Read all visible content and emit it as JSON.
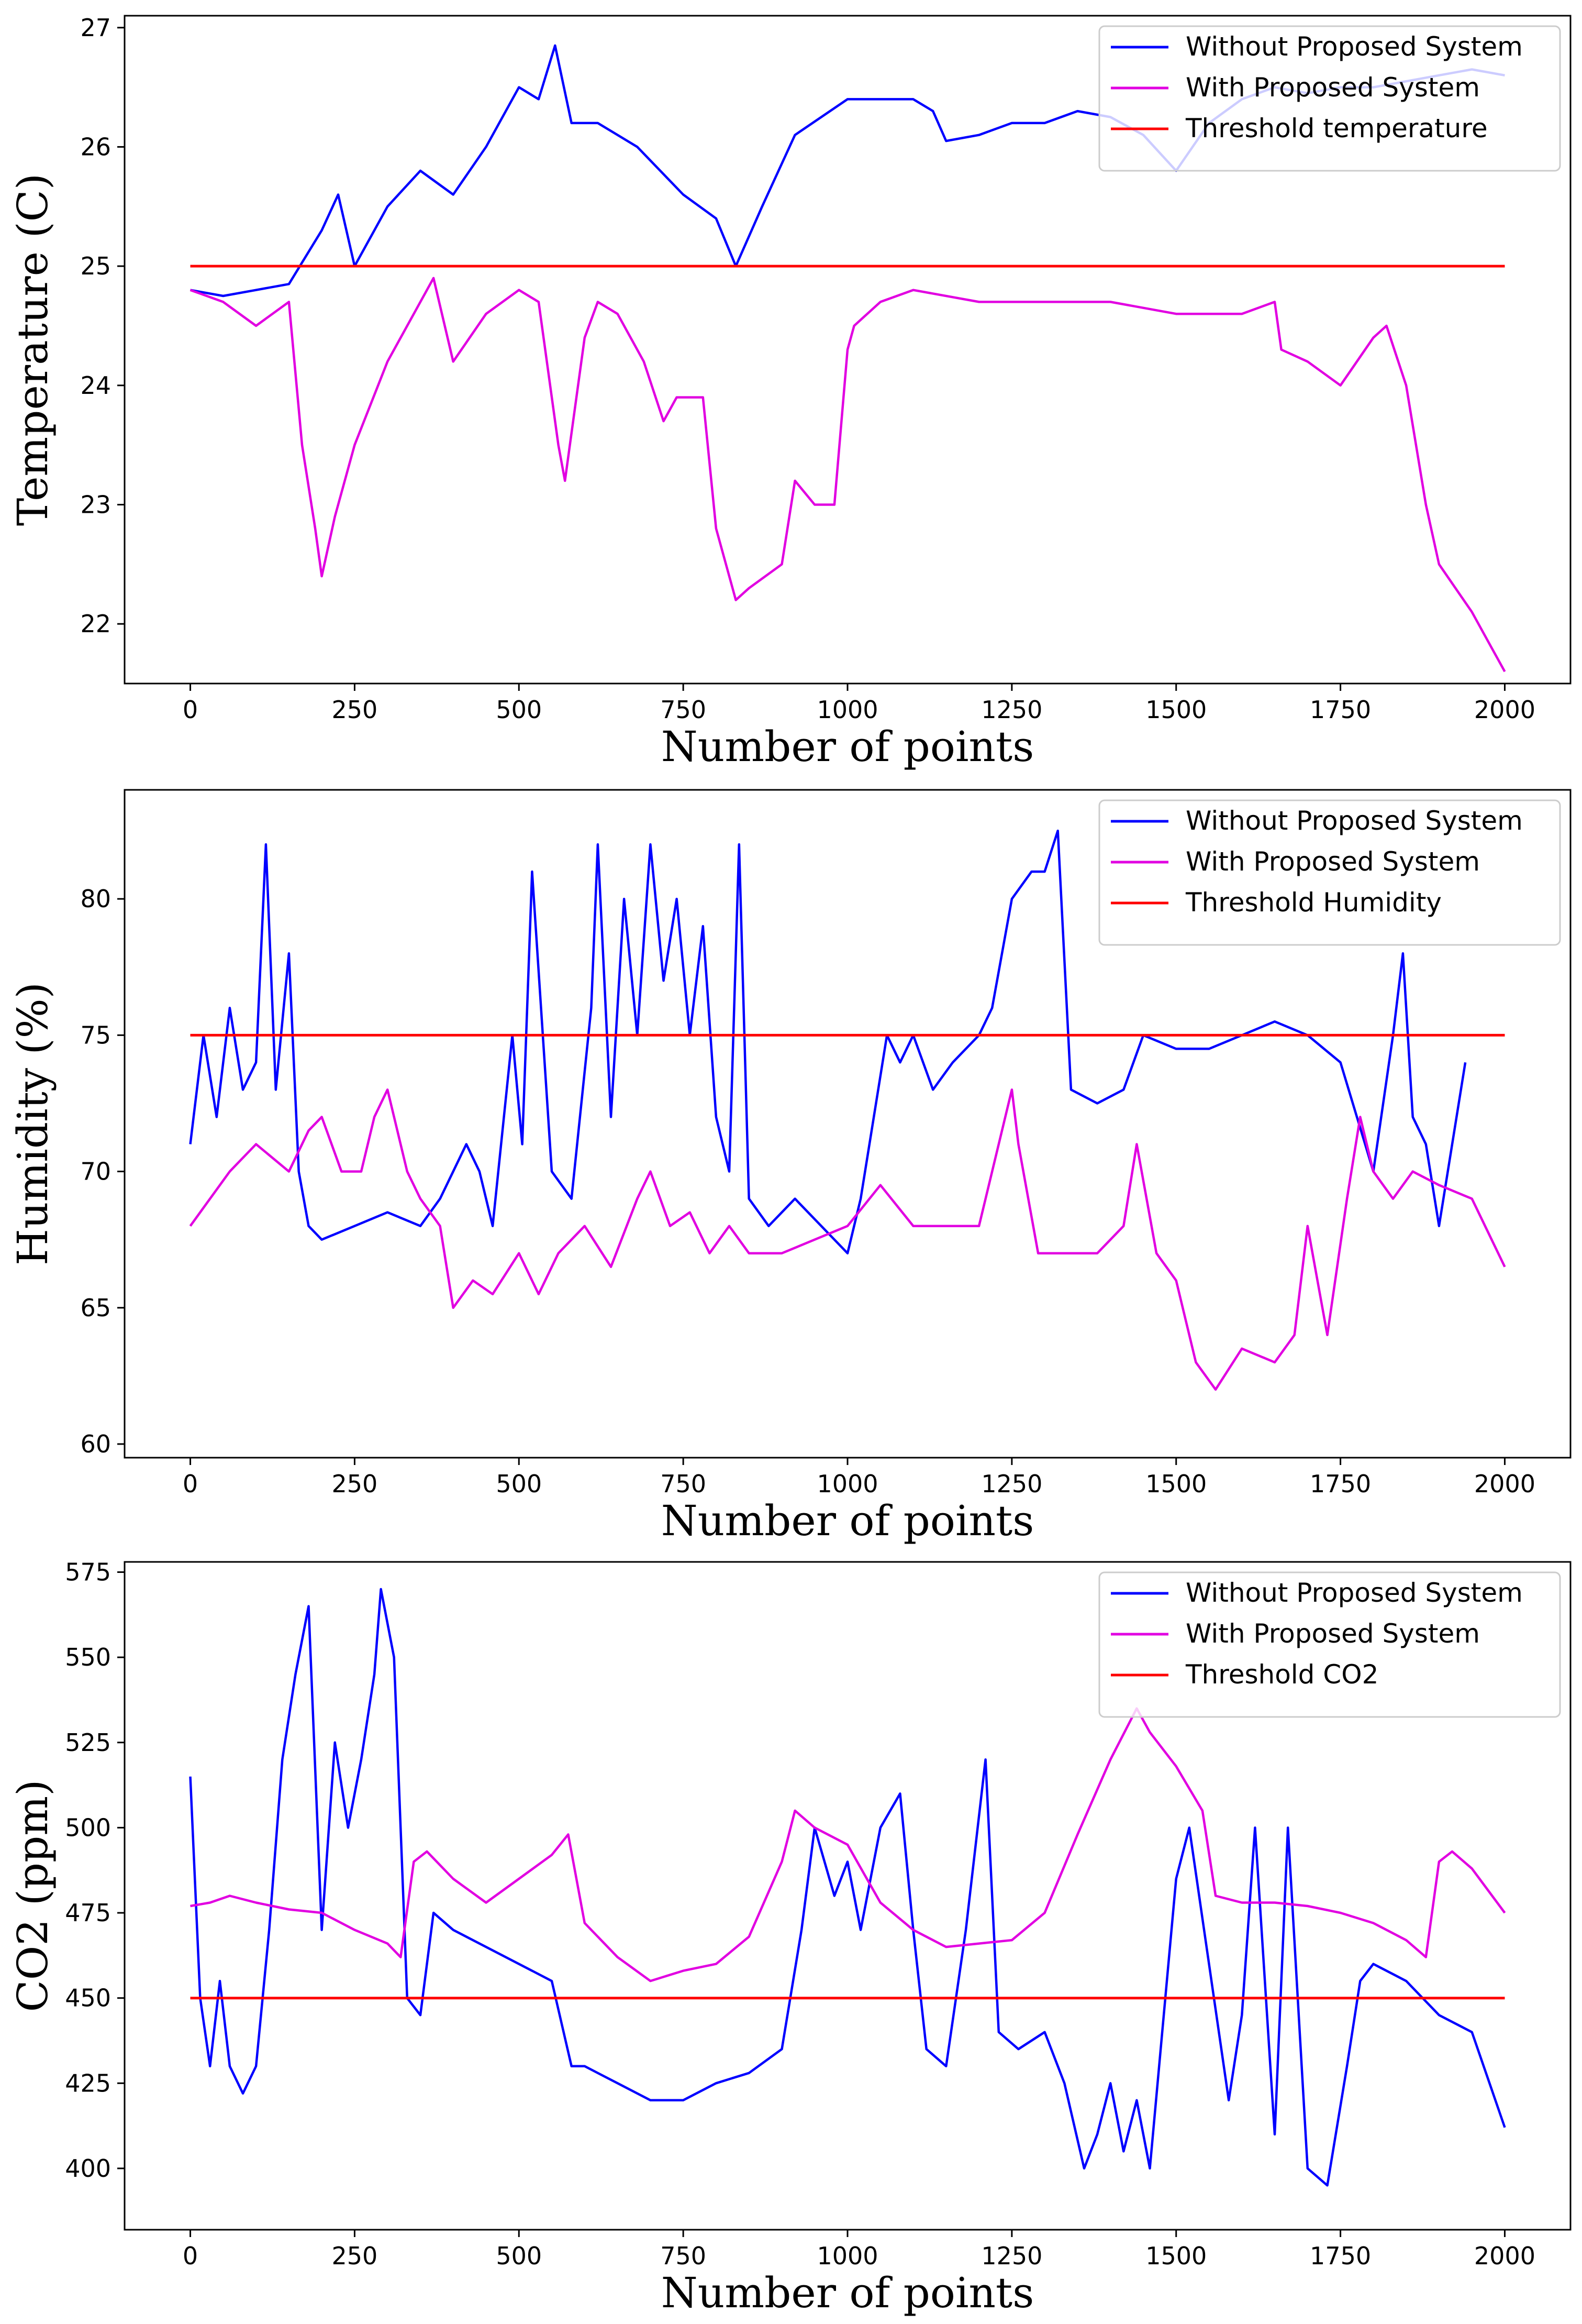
{
  "chart_data": [
    {
      "type": "line",
      "xlabel": "Number of points",
      "ylabel": "Temperature (C)",
      "xlim": [
        -100,
        2100
      ],
      "ylim": [
        21.5,
        27.1
      ],
      "xticks": [
        0,
        250,
        500,
        750,
        1000,
        1250,
        1500,
        1750,
        2000
      ],
      "yticks": [
        22,
        23,
        24,
        25,
        26,
        27
      ],
      "legend_position": "top-right",
      "series": [
        {
          "name": "Without Proposed System",
          "color": "#0000ff",
          "x": [
            0,
            50,
            100,
            150,
            200,
            225,
            250,
            300,
            350,
            400,
            450,
            500,
            530,
            555,
            580,
            620,
            680,
            750,
            800,
            830,
            870,
            920,
            1000,
            1050,
            1100,
            1130,
            1150,
            1200,
            1250,
            1300,
            1350,
            1400,
            1450,
            1500,
            1550,
            1600,
            1650,
            1700,
            1750,
            1800,
            1850,
            1900,
            1950,
            2000
          ],
          "y": [
            24.8,
            24.75,
            24.8,
            24.85,
            25.3,
            25.6,
            25.0,
            25.5,
            25.8,
            25.6,
            26.0,
            26.5,
            26.4,
            26.85,
            26.2,
            26.2,
            26.0,
            25.6,
            25.4,
            25.0,
            25.5,
            26.1,
            26.4,
            26.4,
            26.4,
            26.3,
            26.05,
            26.1,
            26.2,
            26.2,
            26.3,
            26.25,
            26.1,
            25.8,
            26.2,
            26.4,
            26.5,
            26.45,
            26.5,
            26.5,
            26.55,
            26.6,
            26.65,
            26.6
          ]
        },
        {
          "name": "With Proposed System",
          "color": "#e100e1",
          "x": [
            0,
            50,
            100,
            150,
            170,
            190,
            200,
            220,
            250,
            300,
            350,
            370,
            400,
            450,
            500,
            530,
            560,
            570,
            580,
            600,
            620,
            650,
            690,
            720,
            740,
            780,
            800,
            830,
            850,
            900,
            920,
            950,
            980,
            1000,
            1010,
            1050,
            1100,
            1200,
            1300,
            1400,
            1500,
            1600,
            1650,
            1660,
            1700,
            1750,
            1800,
            1820,
            1850,
            1880,
            1900,
            1950,
            1980,
            2000
          ],
          "y": [
            24.8,
            24.7,
            24.5,
            24.7,
            23.5,
            22.8,
            22.4,
            22.9,
            23.5,
            24.2,
            24.7,
            24.9,
            24.2,
            24.6,
            24.8,
            24.7,
            23.5,
            23.2,
            23.6,
            24.4,
            24.7,
            24.6,
            24.2,
            23.7,
            23.9,
            23.9,
            22.8,
            22.2,
            22.3,
            22.5,
            23.2,
            23.0,
            23.0,
            24.3,
            24.5,
            24.7,
            24.8,
            24.7,
            24.7,
            24.7,
            24.6,
            24.6,
            24.7,
            24.3,
            24.2,
            24.0,
            24.4,
            24.5,
            24.0,
            23.0,
            22.5,
            22.1,
            21.8,
            21.6
          ]
        },
        {
          "name": "Threshold temperature",
          "color": "#ff0000",
          "x": [
            0,
            2000
          ],
          "y": [
            25,
            25
          ]
        }
      ]
    },
    {
      "type": "line",
      "xlabel": "Number of points",
      "ylabel": "Humidity (%)",
      "xlim": [
        -100,
        2100
      ],
      "ylim": [
        59.5,
        84.0
      ],
      "xticks": [
        0,
        250,
        500,
        750,
        1000,
        1250,
        1500,
        1750,
        2000
      ],
      "yticks": [
        60,
        65,
        70,
        75,
        80
      ],
      "legend_position": "top-right",
      "series": [
        {
          "name": "Without Proposed System",
          "color": "#0000ff",
          "x": [
            0,
            20,
            40,
            60,
            80,
            100,
            115,
            130,
            150,
            165,
            180,
            200,
            250,
            300,
            350,
            380,
            420,
            440,
            460,
            490,
            505,
            520,
            550,
            580,
            610,
            620,
            640,
            660,
            680,
            700,
            720,
            740,
            760,
            780,
            800,
            820,
            835,
            850,
            880,
            920,
            960,
            1000,
            1020,
            1040,
            1060,
            1080,
            1100,
            1130,
            1160,
            1200,
            1220,
            1250,
            1280,
            1300,
            1320,
            1340,
            1380,
            1420,
            1450,
            1500,
            1550,
            1600,
            1650,
            1700,
            1750,
            1800,
            1830,
            1845,
            1860,
            1880,
            1900,
            1940
          ],
          "y": [
            71,
            75,
            72,
            76,
            73,
            74,
            82,
            73,
            78,
            70,
            68,
            67.5,
            68,
            68.5,
            68,
            69,
            71,
            70,
            68,
            75,
            71,
            81,
            70,
            69,
            76,
            82,
            72,
            80,
            75,
            82,
            77,
            80,
            75,
            79,
            72,
            70,
            82,
            69,
            68,
            69,
            68,
            67,
            69,
            72,
            75,
            74,
            75,
            73,
            74,
            75,
            76,
            80,
            81,
            81,
            82.5,
            73,
            72.5,
            73,
            75,
            74.5,
            74.5,
            75,
            75.5,
            75,
            74,
            70,
            75,
            78,
            72,
            71,
            68,
            74
          ]
        },
        {
          "name": "With Proposed System",
          "color": "#e100e1",
          "x": [
            0,
            30,
            60,
            100,
            150,
            180,
            200,
            230,
            260,
            280,
            300,
            330,
            350,
            380,
            400,
            430,
            460,
            500,
            530,
            560,
            600,
            640,
            680,
            700,
            730,
            760,
            790,
            820,
            850,
            900,
            950,
            1000,
            1050,
            1100,
            1150,
            1200,
            1250,
            1260,
            1290,
            1330,
            1380,
            1420,
            1440,
            1470,
            1500,
            1530,
            1560,
            1600,
            1650,
            1680,
            1700,
            1730,
            1760,
            1780,
            1800,
            1830,
            1860,
            1900,
            1950,
            2000
          ],
          "y": [
            68,
            69,
            70,
            71,
            70,
            71.5,
            72,
            70,
            70,
            72,
            73,
            70,
            69,
            68,
            65,
            66,
            65.5,
            67,
            65.5,
            67,
            68,
            66.5,
            69,
            70,
            68,
            68.5,
            67,
            68,
            67,
            67,
            67.5,
            68,
            69.5,
            68,
            68,
            68,
            73,
            71,
            67,
            67,
            67,
            68,
            71,
            67,
            66,
            63,
            62,
            63.5,
            63,
            64,
            68,
            64,
            69,
            72,
            70,
            69,
            70,
            69.5,
            69,
            66.5
          ]
        },
        {
          "name": "Threshold Humidity",
          "color": "#ff0000",
          "x": [
            0,
            2000
          ],
          "y": [
            75,
            75
          ]
        }
      ]
    },
    {
      "type": "line",
      "xlabel": "Number of points",
      "ylabel": "CO2 (ppm)",
      "xlim": [
        -100,
        2100
      ],
      "ylim": [
        382,
        578
      ],
      "xticks": [
        0,
        250,
        500,
        750,
        1000,
        1250,
        1500,
        1750,
        2000
      ],
      "yticks": [
        400,
        425,
        450,
        475,
        500,
        525,
        550,
        575
      ],
      "legend_position": "top-right",
      "series": [
        {
          "name": "Without Proposed System",
          "color": "#0000ff",
          "x": [
            0,
            15,
            30,
            45,
            60,
            80,
            100,
            120,
            140,
            160,
            180,
            200,
            220,
            240,
            260,
            280,
            290,
            310,
            330,
            350,
            370,
            400,
            450,
            500,
            550,
            580,
            600,
            650,
            700,
            750,
            800,
            850,
            900,
            930,
            950,
            980,
            1000,
            1020,
            1050,
            1080,
            1100,
            1120,
            1150,
            1180,
            1210,
            1230,
            1260,
            1300,
            1330,
            1360,
            1380,
            1400,
            1420,
            1440,
            1460,
            1500,
            1520,
            1550,
            1580,
            1600,
            1620,
            1650,
            1670,
            1700,
            1730,
            1760,
            1780,
            1800,
            1850,
            1900,
            1950,
            2000
          ],
          "y": [
            515,
            450,
            430,
            455,
            430,
            422,
            430,
            470,
            520,
            545,
            565,
            470,
            525,
            500,
            520,
            545,
            570,
            550,
            450,
            445,
            475,
            470,
            465,
            460,
            455,
            430,
            430,
            425,
            420,
            420,
            425,
            428,
            435,
            470,
            500,
            480,
            490,
            470,
            500,
            510,
            470,
            435,
            430,
            470,
            520,
            440,
            435,
            440,
            425,
            400,
            410,
            425,
            405,
            420,
            400,
            485,
            500,
            460,
            420,
            445,
            500,
            410,
            500,
            400,
            395,
            430,
            455,
            460,
            455,
            445,
            440,
            412
          ]
        },
        {
          "name": "With Proposed System",
          "color": "#e100e1",
          "x": [
            0,
            30,
            60,
            100,
            150,
            200,
            250,
            300,
            320,
            340,
            360,
            400,
            450,
            500,
            550,
            575,
            600,
            650,
            700,
            750,
            800,
            850,
            900,
            920,
            950,
            1000,
            1050,
            1100,
            1150,
            1200,
            1250,
            1300,
            1350,
            1400,
            1440,
            1460,
            1500,
            1540,
            1560,
            1600,
            1650,
            1700,
            1750,
            1800,
            1850,
            1880,
            1900,
            1920,
            1950,
            2000
          ],
          "y": [
            477,
            478,
            480,
            478,
            476,
            475,
            470,
            466,
            462,
            490,
            493,
            485,
            478,
            485,
            492,
            498,
            472,
            462,
            455,
            458,
            460,
            468,
            490,
            505,
            500,
            495,
            478,
            470,
            465,
            466,
            467,
            475,
            498,
            520,
            535,
            528,
            518,
            505,
            480,
            478,
            478,
            477,
            475,
            472,
            467,
            462,
            490,
            493,
            488,
            475
          ]
        },
        {
          "name": "Threshold CO2",
          "color": "#ff0000",
          "x": [
            0,
            2000
          ],
          "y": [
            450,
            450
          ]
        }
      ]
    }
  ]
}
